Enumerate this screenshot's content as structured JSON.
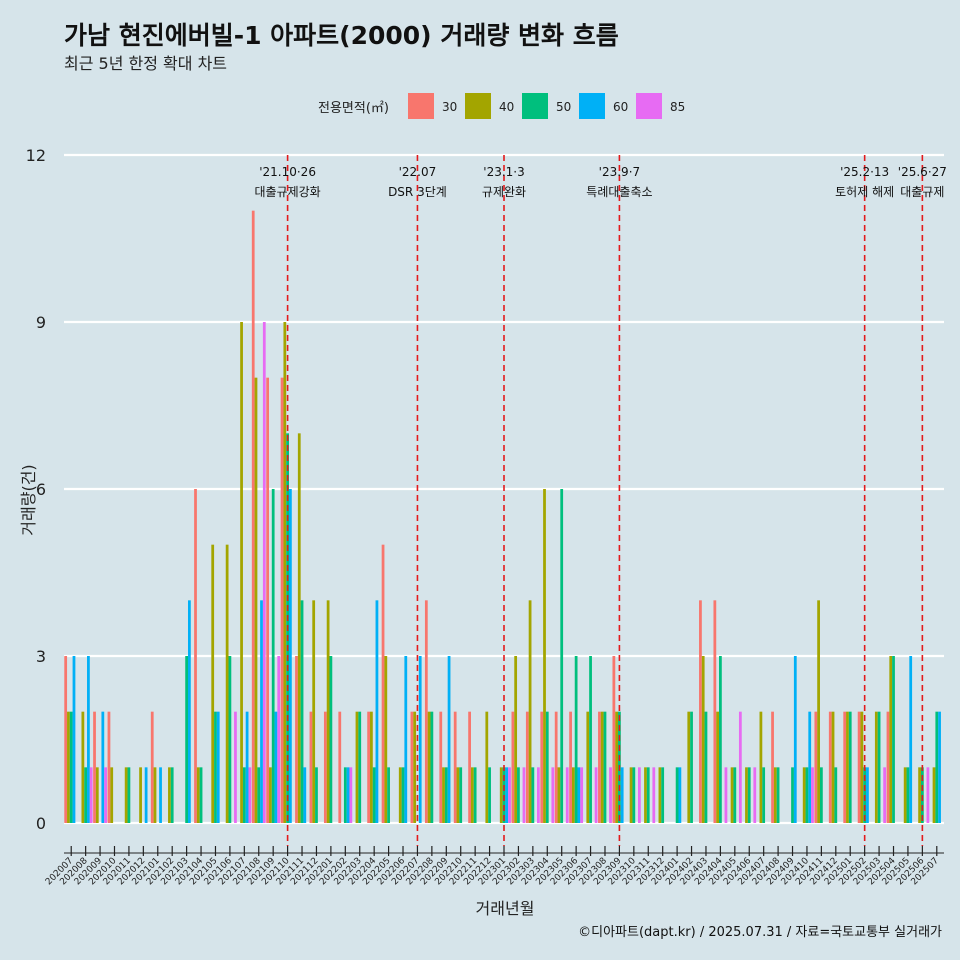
{
  "header": {
    "title": "가남 현진에버빌-1 아파트(2000) 거래량 변화 흐름",
    "subtitle": "최근 5년 한정 확대 차트"
  },
  "caption": "©디아파트(dapt.kr) / 2025.07.31 / 자료=국토교통부 실거래가",
  "colors": {
    "background": "#d6e4ea",
    "grid": "#ffffff",
    "event_line": "#e31a1c"
  },
  "chart_data": {
    "type": "bar",
    "title": "가남 현진에버빌-1 아파트(2000) 거래량 변화 흐름",
    "xlabel": "거래년월",
    "ylabel": "거래량(건)",
    "ylim": [
      0,
      12
    ],
    "yticks": [
      0,
      3,
      6,
      9,
      12
    ],
    "legend_title": "전용면적(㎡)",
    "legend_position": "top",
    "categories": [
      "202007",
      "202008",
      "202009",
      "202010",
      "202011",
      "202012",
      "202101",
      "202102",
      "202103",
      "202104",
      "202105",
      "202106",
      "202107",
      "202108",
      "202109",
      "202110",
      "202111",
      "202112",
      "202201",
      "202202",
      "202203",
      "202204",
      "202205",
      "202206",
      "202207",
      "202208",
      "202209",
      "202210",
      "202211",
      "202212",
      "202301",
      "202302",
      "202303",
      "202304",
      "202305",
      "202306",
      "202307",
      "202308",
      "202309",
      "202310",
      "202311",
      "202312",
      "202401",
      "202402",
      "202403",
      "202404",
      "202405",
      "202406",
      "202407",
      "202408",
      "202409",
      "202410",
      "202411",
      "202412",
      "202501",
      "202502",
      "202503",
      "202504",
      "202505",
      "202506",
      "202507"
    ],
    "tick_labels": [
      "202007",
      "202008",
      "202009",
      "202010",
      "202011",
      "202012",
      "202101",
      "202102",
      "202103",
      "202104",
      "202105",
      "202106",
      "202107",
      "202108",
      "202109",
      "202110",
      "202111",
      "202112",
      "202201",
      "202202",
      "202203",
      "202204",
      "202205",
      "202206",
      "202207",
      "202208",
      "202209",
      "202210",
      "202211",
      "202212",
      "202301",
      "202302",
      "202303",
      "202304",
      "202305",
      "202306",
      "202307",
      "202308",
      "202309",
      "202310",
      "202311",
      "202312",
      "202401",
      "202402",
      "202403",
      "202404",
      "202405",
      "202406",
      "202407",
      "202408",
      "202409",
      "202410",
      "202411",
      "202412",
      "202501",
      "202502",
      "202503",
      "202504",
      "202505",
      "202506",
      "202507"
    ],
    "series": [
      {
        "name": "30",
        "color": "#f8766d",
        "values": [
          3,
          0,
          2,
          2,
          0,
          0,
          2,
          0,
          0,
          6,
          0,
          0,
          0,
          11,
          8,
          8,
          3,
          2,
          2,
          2,
          0,
          2,
          5,
          0,
          2,
          4,
          2,
          2,
          2,
          0,
          0,
          2,
          2,
          2,
          2,
          2,
          0,
          2,
          3,
          0,
          0,
          0,
          0,
          0,
          4,
          4,
          0,
          0,
          0,
          2,
          0,
          0,
          2,
          2,
          2,
          2,
          0,
          2,
          0,
          0,
          0
        ]
      },
      {
        "name": "40",
        "color": "#a3a500",
        "values": [
          2,
          2,
          1,
          1,
          1,
          1,
          1,
          1,
          0,
          1,
          5,
          5,
          9,
          8,
          1,
          9,
          7,
          4,
          4,
          0,
          2,
          2,
          3,
          1,
          2,
          2,
          1,
          1,
          1,
          2,
          1,
          3,
          4,
          6,
          1,
          1,
          2,
          2,
          2,
          1,
          1,
          1,
          0,
          2,
          3,
          2,
          1,
          1,
          2,
          1,
          0,
          1,
          4,
          2,
          2,
          2,
          2,
          3,
          1,
          1,
          1
        ]
      },
      {
        "name": "50",
        "color": "#00bf7d",
        "values": [
          2,
          1,
          0,
          0,
          1,
          0,
          0,
          1,
          3,
          1,
          2,
          3,
          1,
          1,
          6,
          7,
          4,
          1,
          3,
          1,
          2,
          1,
          1,
          1,
          0,
          2,
          1,
          1,
          1,
          1,
          1,
          1,
          1,
          2,
          6,
          3,
          3,
          2,
          2,
          1,
          1,
          1,
          1,
          2,
          2,
          3,
          1,
          1,
          1,
          1,
          1,
          1,
          1,
          1,
          2,
          1,
          2,
          3,
          1,
          1,
          2
        ]
      },
      {
        "name": "60",
        "color": "#00b0f6",
        "values": [
          3,
          3,
          2,
          0,
          0,
          1,
          1,
          0,
          4,
          0,
          2,
          0,
          2,
          4,
          2,
          6,
          1,
          0,
          0,
          1,
          0,
          4,
          0,
          3,
          3,
          0,
          3,
          0,
          0,
          0,
          1,
          0,
          0,
          0,
          0,
          1,
          0,
          0,
          1,
          0,
          0,
          0,
          1,
          0,
          0,
          0,
          0,
          0,
          0,
          0,
          3,
          2,
          0,
          0,
          0,
          1,
          0,
          0,
          3,
          0,
          2
        ]
      },
      {
        "name": "85",
        "color": "#e76bf3",
        "values": [
          0,
          1,
          1,
          0,
          0,
          0,
          0,
          0,
          0,
          0,
          0,
          2,
          1,
          9,
          3,
          0,
          0,
          0,
          0,
          1,
          0,
          0,
          0,
          0,
          0,
          0,
          0,
          0,
          0,
          0,
          1,
          1,
          1,
          1,
          1,
          1,
          1,
          1,
          0,
          1,
          1,
          0,
          0,
          0,
          0,
          1,
          2,
          1,
          0,
          0,
          0,
          1,
          0,
          0,
          0,
          0,
          1,
          0,
          0,
          1,
          0
        ]
      }
    ],
    "annotations": [
      {
        "at": "202110",
        "date": "'21.10·26",
        "label": "대출규제강화"
      },
      {
        "at": "202207",
        "date": "'22.07",
        "label": "DSR 3단계"
      },
      {
        "at": "202301",
        "date": "'23.1·3",
        "label": "규제완화"
      },
      {
        "at": "202309",
        "date": "'23.9·7",
        "label": "특례대출축소"
      },
      {
        "at": "202502",
        "date": "'25.2·13",
        "label": "토허제 해제"
      },
      {
        "at": "202506",
        "date": "'25.6·27",
        "label": "대출규제"
      }
    ]
  }
}
